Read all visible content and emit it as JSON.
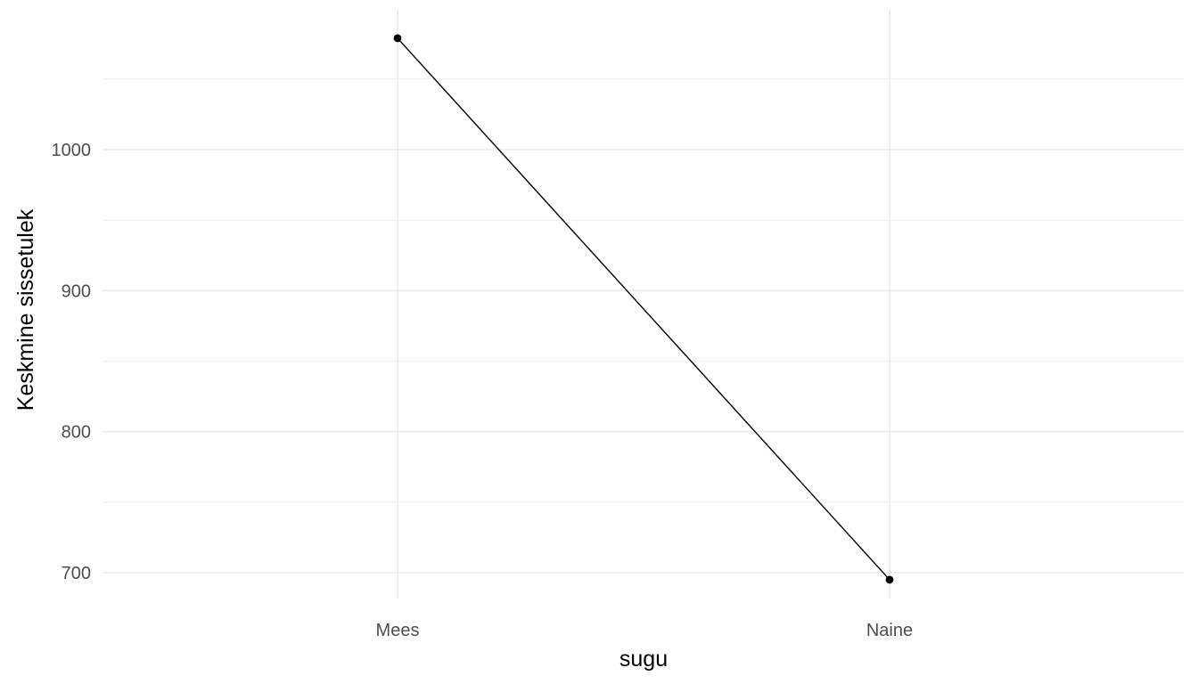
{
  "chart_data": {
    "type": "line",
    "title": "",
    "xlabel": "sugu",
    "ylabel": "Keskmine sissetulek",
    "categories": [
      "Mees",
      "Naine"
    ],
    "series": [
      {
        "values": [
          1079,
          695
        ]
      }
    ],
    "ylim": [
      670,
      1100
    ],
    "yticks": [
      700,
      800,
      900,
      1000
    ],
    "yminor_ticks": [
      750,
      850,
      950,
      1050
    ],
    "grid": true,
    "legend": "none",
    "colors": {
      "line": "#000000",
      "point": "#000000",
      "grid": "#ebebeb",
      "tick_text": "#4d4d4d",
      "background": "#ffffff"
    }
  }
}
